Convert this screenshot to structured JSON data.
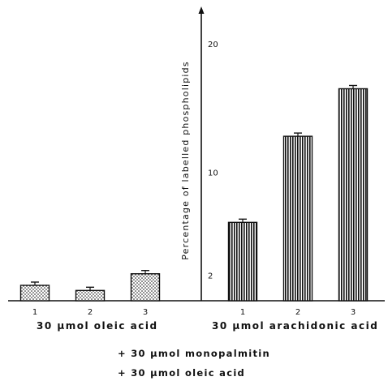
{
  "chart_data": {
    "type": "bar",
    "ylabel": "Percentage of labelled phospholipids",
    "ylim": [
      0,
      20
    ],
    "yticks": [
      "2",
      "10",
      "20"
    ],
    "grid": false,
    "groups": [
      {
        "label": "30 μmol oleic acid",
        "pattern": "dotted",
        "categories": [
          "1",
          "2",
          "3"
        ],
        "values": [
          1.2,
          0.8,
          2.1
        ]
      },
      {
        "label": "30 μmol arachidonic acid",
        "pattern": "vertical-lines",
        "categories": [
          "1",
          "2",
          "3"
        ],
        "values": [
          6.1,
          12.8,
          16.5
        ]
      }
    ],
    "footnotes": [
      "+ 30 μmol monopalmitin",
      "+ 30 μmol oleic acid"
    ]
  },
  "colors": {
    "ink": "#111111",
    "background": "#ffffff"
  }
}
